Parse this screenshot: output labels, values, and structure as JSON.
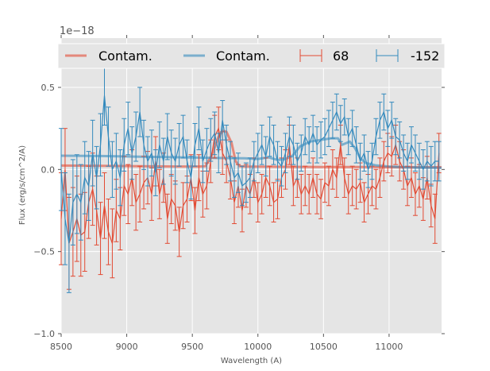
{
  "chart_data": {
    "type": "line",
    "title": "",
    "xlabel": "Wavelength (A)",
    "ylabel": "Flux (erg/s/cm^2/A)",
    "y_offset_label": "1e−18",
    "xlim": [
      8500,
      11400
    ],
    "ylim": [
      -1.0,
      0.8
    ],
    "xticks": [
      8500,
      9000,
      9500,
      10000,
      10500,
      11000
    ],
    "xtick_labels": [
      "8500",
      "9000",
      "9500",
      "10000",
      "10500",
      "11000"
    ],
    "yticks": [
      -1.0,
      -0.5,
      0.0,
      0.5
    ],
    "ytick_labels": [
      "−1.0",
      "−0.5",
      "0.0",
      "0.5"
    ],
    "grid": true,
    "legend_position": "top",
    "legend": [
      {
        "label": "Contam.",
        "kind": "line",
        "color": "#E24A33"
      },
      {
        "label": "Contam.",
        "kind": "line",
        "color": "#348ABD"
      },
      {
        "label": "68",
        "kind": "errorbar",
        "color": "#E24A33"
      },
      {
        "label": "-152",
        "kind": "errorbar",
        "color": "#348ABD"
      }
    ],
    "x": [
      8500,
      8530,
      8560,
      8590,
      8620,
      8650,
      8680,
      8710,
      8740,
      8770,
      8800,
      8830,
      8860,
      8890,
      8920,
      8950,
      8980,
      9010,
      9040,
      9070,
      9100,
      9130,
      9160,
      9190,
      9220,
      9250,
      9280,
      9310,
      9340,
      9370,
      9400,
      9430,
      9460,
      9490,
      9520,
      9550,
      9580,
      9610,
      9640,
      9670,
      9700,
      9730,
      9760,
      9790,
      9820,
      9850,
      9880,
      9910,
      9940,
      9970,
      10000,
      10030,
      10060,
      10090,
      10120,
      10150,
      10180,
      10210,
      10240,
      10270,
      10300,
      10330,
      10360,
      10390,
      10420,
      10450,
      10480,
      10510,
      10540,
      10570,
      10600,
      10630,
      10660,
      10690,
      10720,
      10750,
      10780,
      10810,
      10840,
      10870,
      10900,
      10930,
      10960,
      10990,
      11020,
      11050,
      11080,
      11110,
      11140,
      11170,
      11200,
      11230,
      11260,
      11290,
      11320,
      11350,
      11380
    ],
    "series": [
      {
        "name": "68",
        "kind": "errorbar",
        "color": "#E24A33",
        "values": [
          -0.3,
          0.0,
          -0.45,
          -0.38,
          -0.3,
          -0.4,
          -0.38,
          -0.2,
          -0.12,
          -0.25,
          -0.42,
          -0.22,
          -0.38,
          -0.45,
          -0.25,
          -0.3,
          -0.1,
          -0.15,
          -0.05,
          -0.2,
          -0.15,
          -0.08,
          -0.05,
          -0.15,
          0.05,
          -0.15,
          -0.05,
          -0.3,
          -0.18,
          -0.22,
          -0.38,
          -0.22,
          -0.18,
          -0.05,
          -0.25,
          -0.05,
          -0.15,
          -0.1,
          0.05,
          0.2,
          0.25,
          0.1,
          0.05,
          -0.05,
          -0.2,
          -0.1,
          -0.25,
          -0.1,
          -0.15,
          -0.05,
          -0.2,
          -0.15,
          -0.05,
          -0.1,
          -0.2,
          -0.18,
          -0.05,
          0.0,
          0.15,
          -0.1,
          -0.05,
          -0.15,
          -0.1,
          -0.15,
          -0.05,
          -0.15,
          -0.18,
          -0.08,
          -0.1,
          0.0,
          -0.05,
          0.15,
          -0.05,
          -0.15,
          -0.1,
          -0.12,
          -0.08,
          -0.2,
          -0.15,
          -0.1,
          -0.12,
          -0.05,
          0.05,
          0.1,
          0.08,
          0.15,
          0.05,
          0.0,
          -0.1,
          -0.05,
          -0.15,
          -0.1,
          -0.18,
          -0.05,
          -0.22,
          -0.3,
          0.1
        ],
        "errors": [
          0.28,
          0.25,
          0.28,
          0.27,
          0.26,
          0.25,
          0.24,
          0.22,
          0.22,
          0.21,
          0.22,
          0.2,
          0.2,
          0.21,
          0.19,
          0.19,
          0.18,
          0.18,
          0.17,
          0.17,
          0.17,
          0.16,
          0.16,
          0.16,
          0.15,
          0.15,
          0.15,
          0.15,
          0.15,
          0.15,
          0.15,
          0.14,
          0.14,
          0.14,
          0.14,
          0.14,
          0.14,
          0.14,
          0.13,
          0.13,
          0.13,
          0.13,
          0.13,
          0.13,
          0.13,
          0.13,
          0.13,
          0.13,
          0.12,
          0.12,
          0.12,
          0.12,
          0.12,
          0.12,
          0.12,
          0.12,
          0.12,
          0.12,
          0.12,
          0.12,
          0.12,
          0.12,
          0.12,
          0.12,
          0.12,
          0.12,
          0.12,
          0.12,
          0.12,
          0.12,
          0.12,
          0.12,
          0.12,
          0.12,
          0.12,
          0.12,
          0.12,
          0.12,
          0.12,
          0.12,
          0.12,
          0.12,
          0.12,
          0.12,
          0.12,
          0.12,
          0.12,
          0.12,
          0.12,
          0.12,
          0.13,
          0.13,
          0.13,
          0.13,
          0.13,
          0.15,
          0.12
        ]
      },
      {
        "name": "-152",
        "kind": "errorbar",
        "color": "#348ABD",
        "values": [
          0.0,
          -0.3,
          -0.45,
          -0.2,
          -0.15,
          -0.2,
          -0.05,
          -0.1,
          0.1,
          -0.05,
          0.15,
          0.45,
          0.2,
          0.0,
          0.05,
          -0.05,
          0.15,
          0.25,
          0.1,
          0.2,
          0.35,
          0.15,
          0.05,
          0.1,
          -0.02,
          0.15,
          0.05,
          0.2,
          0.1,
          0.05,
          0.15,
          0.2,
          0.05,
          -0.05,
          0.15,
          0.25,
          0.05,
          0.12,
          0.18,
          0.22,
          0.1,
          0.3,
          0.15,
          0.05,
          -0.05,
          -0.02,
          -0.1,
          -0.08,
          -0.05,
          0.05,
          0.1,
          0.15,
          0.08,
          0.2,
          0.15,
          0.05,
          0.02,
          0.1,
          0.2,
          0.15,
          0.05,
          0.1,
          0.2,
          0.15,
          0.22,
          0.15,
          0.18,
          0.2,
          0.25,
          0.3,
          0.35,
          0.28,
          0.32,
          0.2,
          0.25,
          0.15,
          0.05,
          0.1,
          0.0,
          0.05,
          0.2,
          0.3,
          0.35,
          0.25,
          0.3,
          0.2,
          0.18,
          0.1,
          0.05,
          0.15,
          0.1,
          0.05,
          0.0,
          0.05,
          0.02,
          0.05,
          0.05
        ],
        "errors": [
          0.25,
          0.28,
          0.3,
          0.26,
          0.24,
          0.23,
          0.22,
          0.21,
          0.2,
          0.19,
          0.19,
          0.18,
          0.18,
          0.17,
          0.17,
          0.17,
          0.16,
          0.16,
          0.16,
          0.15,
          0.15,
          0.15,
          0.15,
          0.14,
          0.14,
          0.14,
          0.14,
          0.14,
          0.14,
          0.14,
          0.13,
          0.13,
          0.13,
          0.13,
          0.13,
          0.13,
          0.13,
          0.13,
          0.13,
          0.13,
          0.12,
          0.12,
          0.12,
          0.12,
          0.12,
          0.12,
          0.12,
          0.12,
          0.12,
          0.12,
          0.12,
          0.12,
          0.12,
          0.12,
          0.12,
          0.12,
          0.12,
          0.12,
          0.12,
          0.12,
          0.11,
          0.11,
          0.11,
          0.11,
          0.11,
          0.11,
          0.11,
          0.11,
          0.11,
          0.11,
          0.11,
          0.11,
          0.11,
          0.11,
          0.11,
          0.11,
          0.11,
          0.11,
          0.11,
          0.11,
          0.11,
          0.11,
          0.11,
          0.11,
          0.11,
          0.11,
          0.11,
          0.11,
          0.11,
          0.11,
          0.11,
          0.11,
          0.12,
          0.12,
          0.12,
          0.12,
          0.12
        ]
      },
      {
        "name": "Contam. (68)",
        "kind": "line",
        "color": "#E24A33",
        "x": [
          8500,
          8800,
          9100,
          9400,
          9550,
          9600,
          9650,
          9700,
          9730,
          9760,
          9800,
          9830,
          9860,
          9900,
          10200,
          10500,
          10800,
          11100,
          11400
        ],
        "values": [
          0.024,
          0.022,
          0.02,
          0.018,
          0.018,
          0.02,
          0.09,
          0.2,
          0.235,
          0.23,
          0.16,
          0.05,
          0.02,
          0.018,
          0.016,
          0.015,
          0.015,
          0.014,
          0.014
        ]
      },
      {
        "name": "Contam. (-152)",
        "kind": "line",
        "color": "#348ABD",
        "x": [
          8500,
          8800,
          9100,
          9400,
          9700,
          9900,
          10000,
          10080,
          10150,
          10200,
          10260,
          10320,
          10400,
          10480,
          10560,
          10610,
          10640,
          10700,
          10740,
          10780,
          10820,
          10900,
          11000,
          11200,
          11400
        ],
        "values": [
          0.084,
          0.082,
          0.078,
          0.074,
          0.07,
          0.068,
          0.064,
          0.074,
          0.058,
          0.062,
          0.08,
          0.14,
          0.17,
          0.18,
          0.19,
          0.19,
          0.15,
          0.17,
          0.13,
          0.07,
          0.04,
          0.025,
          0.018,
          0.012,
          0.01
        ]
      }
    ]
  }
}
